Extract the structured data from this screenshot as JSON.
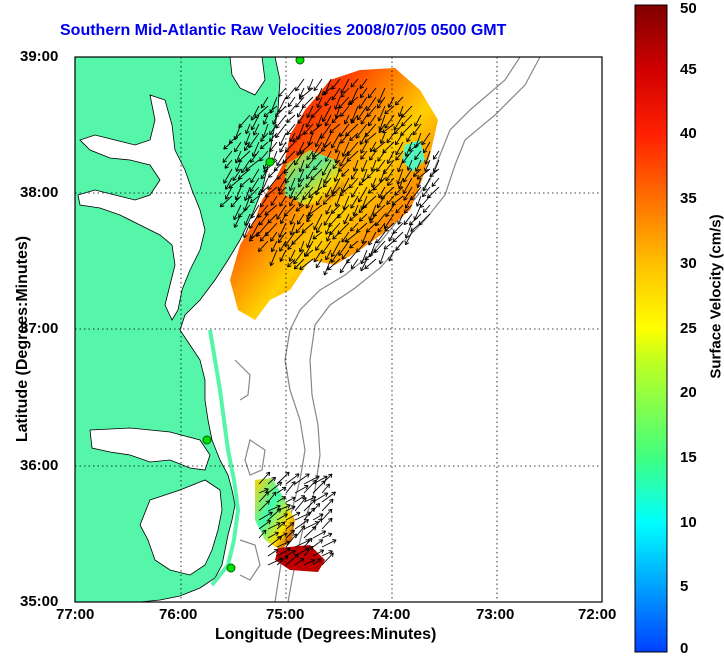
{
  "title": "Southern Mid-Atlantic Raw Velocities 2008/07/05 0500 GMT",
  "xlabel": "Longitude (Degrees:Minutes)",
  "ylabel": "Latitude (Degrees:Minutes)",
  "colorbar": {
    "label": "Surface Velocity (cm/s)",
    "min": 0,
    "max": 50,
    "ticks": [
      "0",
      "5",
      "10",
      "15",
      "20",
      "25",
      "30",
      "35",
      "40",
      "45",
      "50"
    ],
    "colormap": [
      "#0040ff",
      "#00c0ff",
      "#00ffff",
      "#40ff80",
      "#c0ff20",
      "#ffff00",
      "#ffc000",
      "#ff6000",
      "#ff1000",
      "#c00000",
      "#800000"
    ]
  },
  "map": {
    "x_ticks": [
      "77:00",
      "76:00",
      "75:00",
      "74:00",
      "73:00",
      "72:00"
    ],
    "y_ticks": [
      "39:00",
      "38:00",
      "37:00",
      "36:00",
      "35:00"
    ],
    "lon_range": [
      -77,
      -72
    ],
    "lat_range": [
      35,
      39
    ],
    "land_color": "#55f5aa",
    "grid": "dotted"
  }
}
